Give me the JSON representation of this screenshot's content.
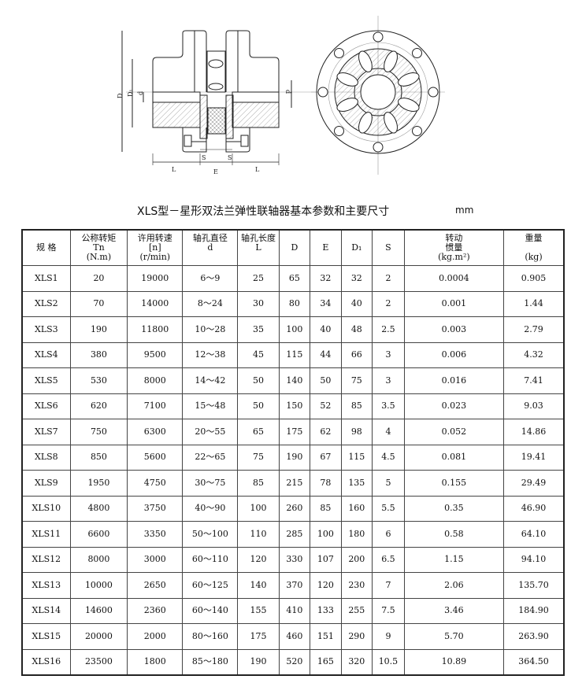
{
  "drawing": {
    "labels": {
      "D": "D",
      "D1": "D₁",
      "d": "d",
      "S": "S",
      "E": "E",
      "L": "L"
    }
  },
  "title": "XLS型－星形双法兰弹性联轴器基本参数和主要尺寸",
  "unit": "mm",
  "table": {
    "headers": [
      {
        "l1": "规 格"
      },
      {
        "l1": "公称转矩",
        "l2": "Tn",
        "l3": "(N.m)"
      },
      {
        "l1": "许用转速",
        "l2": "[n]",
        "l3": "(r/min)"
      },
      {
        "l1": "轴孔直径",
        "l2": "d"
      },
      {
        "l1": "轴孔长度",
        "l2": "L"
      },
      {
        "l1": "D"
      },
      {
        "l1": "E"
      },
      {
        "l1": "D₁"
      },
      {
        "l1": "S"
      },
      {
        "l1": "转动",
        "l2": "惯量",
        "l3": "(kg.m²)"
      },
      {
        "l1": "重量",
        "l3": "(kg)"
      }
    ],
    "rows": [
      [
        "XLS1",
        "20",
        "19000",
        "6～9",
        "25",
        "65",
        "32",
        "32",
        "2",
        "0.0004",
        "0.905"
      ],
      [
        "XLS2",
        "70",
        "14000",
        "8～24",
        "30",
        "80",
        "34",
        "40",
        "2",
        "0.001",
        "1.44"
      ],
      [
        "XLS3",
        "190",
        "11800",
        "10～28",
        "35",
        "100",
        "40",
        "48",
        "2.5",
        "0.003",
        "2.79"
      ],
      [
        "XLS4",
        "380",
        "9500",
        "12～38",
        "45",
        "115",
        "44",
        "66",
        "3",
        "0.006",
        "4.32"
      ],
      [
        "XLS5",
        "530",
        "8000",
        "14～42",
        "50",
        "140",
        "50",
        "75",
        "3",
        "0.016",
        "7.41"
      ],
      [
        "XLS6",
        "620",
        "7100",
        "15～48",
        "50",
        "150",
        "52",
        "85",
        "3.5",
        "0.023",
        "9.03"
      ],
      [
        "XLS7",
        "750",
        "6300",
        "20～55",
        "65",
        "175",
        "62",
        "98",
        "4",
        "0.052",
        "14.86"
      ],
      [
        "XLS8",
        "850",
        "5600",
        "22～65",
        "75",
        "190",
        "67",
        "115",
        "4.5",
        "0.081",
        "19.41"
      ],
      [
        "XLS9",
        "1950",
        "4750",
        "30～75",
        "85",
        "215",
        "78",
        "135",
        "5",
        "0.155",
        "29.49"
      ],
      [
        "XLS10",
        "4800",
        "3750",
        "40～90",
        "100",
        "260",
        "85",
        "160",
        "5.5",
        "0.35",
        "46.90"
      ],
      [
        "XLS11",
        "6600",
        "3350",
        "50～100",
        "110",
        "285",
        "100",
        "180",
        "6",
        "0.58",
        "64.10"
      ],
      [
        "XLS12",
        "8000",
        "3000",
        "60～110",
        "120",
        "330",
        "107",
        "200",
        "6.5",
        "1.15",
        "94.10"
      ],
      [
        "XLS13",
        "10000",
        "2650",
        "60～125",
        "140",
        "370",
        "120",
        "230",
        "7",
        "2.06",
        "135.70"
      ],
      [
        "XLS14",
        "14600",
        "2360",
        "60～140",
        "155",
        "410",
        "133",
        "255",
        "7.5",
        "3.46",
        "184.90"
      ],
      [
        "XLS15",
        "20000",
        "2000",
        "80～160",
        "175",
        "460",
        "151",
        "290",
        "9",
        "5.70",
        "263.90"
      ],
      [
        "XLS16",
        "23500",
        "1800",
        "85～180",
        "190",
        "520",
        "165",
        "320",
        "10.5",
        "10.89",
        "364.50"
      ]
    ]
  }
}
